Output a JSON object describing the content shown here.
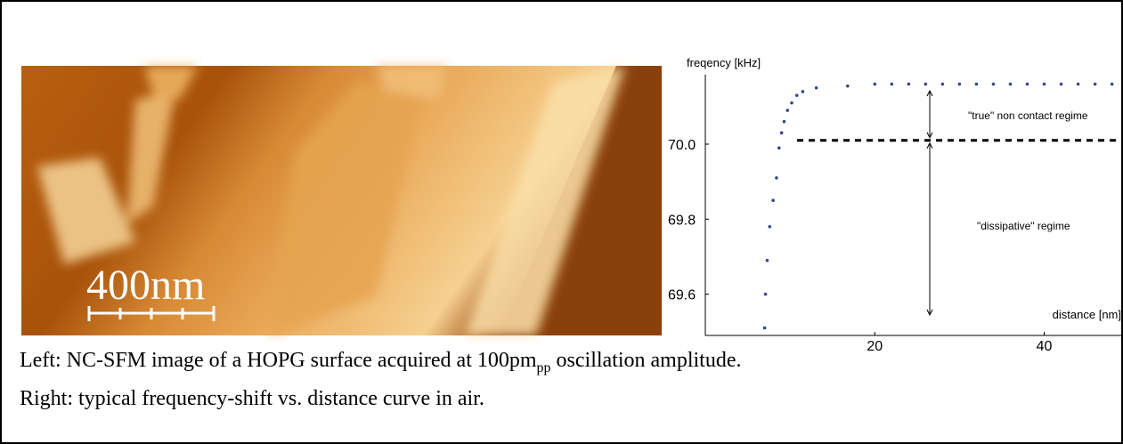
{
  "image": {
    "scale_label": "400nm"
  },
  "chart_data": {
    "type": "scatter",
    "ylabel": "freqency [kHz]",
    "xlabel": "distance [nm]",
    "annotations": [
      "\"true\" non contact regime",
      "\"dissipative\" regime"
    ],
    "threshold_line": 70.01,
    "xlim": [
      0,
      49.3
    ],
    "ylim": [
      69.49,
      70.185
    ],
    "xticks": [
      20,
      40
    ],
    "yticks": [
      69.6,
      69.8,
      {
        "value": 70,
        "label": "70.0"
      }
    ],
    "series": [
      {
        "color": "#2f4a8f",
        "x": [
          7.0,
          7.1,
          7.3,
          7.6,
          8.0,
          8.4,
          8.7,
          9.0,
          9.3,
          9.7,
          10.2,
          10.8,
          11.5,
          13.1,
          16.8,
          20,
          22,
          24,
          26,
          28,
          30,
          32,
          34,
          36,
          38,
          40,
          42,
          44,
          46,
          48
        ],
        "values": [
          69.51,
          69.6,
          69.69,
          69.78,
          69.85,
          69.91,
          69.99,
          70.03,
          70.06,
          70.09,
          70.11,
          70.13,
          70.14,
          70.15,
          70.155,
          70.16,
          70.16,
          70.16,
          70.16,
          70.16,
          70.16,
          70.16,
          70.16,
          70.16,
          70.16,
          70.16,
          70.16,
          70.16,
          70.16,
          70.16
        ]
      }
    ]
  },
  "caption": {
    "line1_before": "Left: NC-SFM image of a HOPG surface acquired at 100pm",
    "line1_subscript": "pp",
    "line1_after": " oscillation amplitude.",
    "line2": "Right: typical frequency-shift vs. distance curve in air."
  }
}
